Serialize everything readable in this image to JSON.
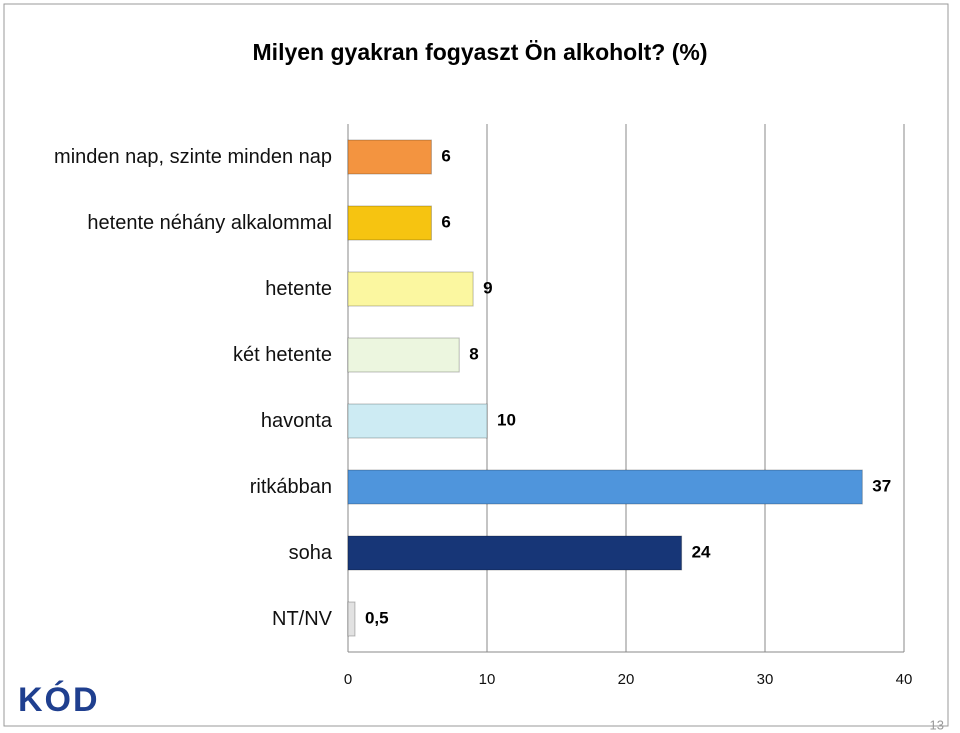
{
  "chart_data": {
    "type": "bar",
    "orientation": "horizontal",
    "title": "Milyen gyakran fogyaszt Ön alkoholt? (%)",
    "categories": [
      "minden nap, szinte minden nap",
      "hetente néhány alkalommal",
      "hetente",
      "két hetente",
      "havonta",
      "ritkábban",
      "soha",
      "NT/NV"
    ],
    "values": [
      6,
      6,
      9,
      8,
      10,
      37,
      24,
      0.5
    ],
    "value_labels": [
      "6",
      "6",
      "9",
      "8",
      "10",
      "37",
      "24",
      "0,5"
    ],
    "colors": [
      "#f39440",
      "#f6c411",
      "#fbf7a0",
      "#ecf6df",
      "#cdebf3",
      "#4f95dc",
      "#173677",
      "#e2e2e2"
    ],
    "xlim": [
      0,
      40
    ],
    "xticks": [
      0,
      10,
      20,
      30,
      40
    ],
    "grid": true
  },
  "logo": "KÓD",
  "page_number": "13"
}
